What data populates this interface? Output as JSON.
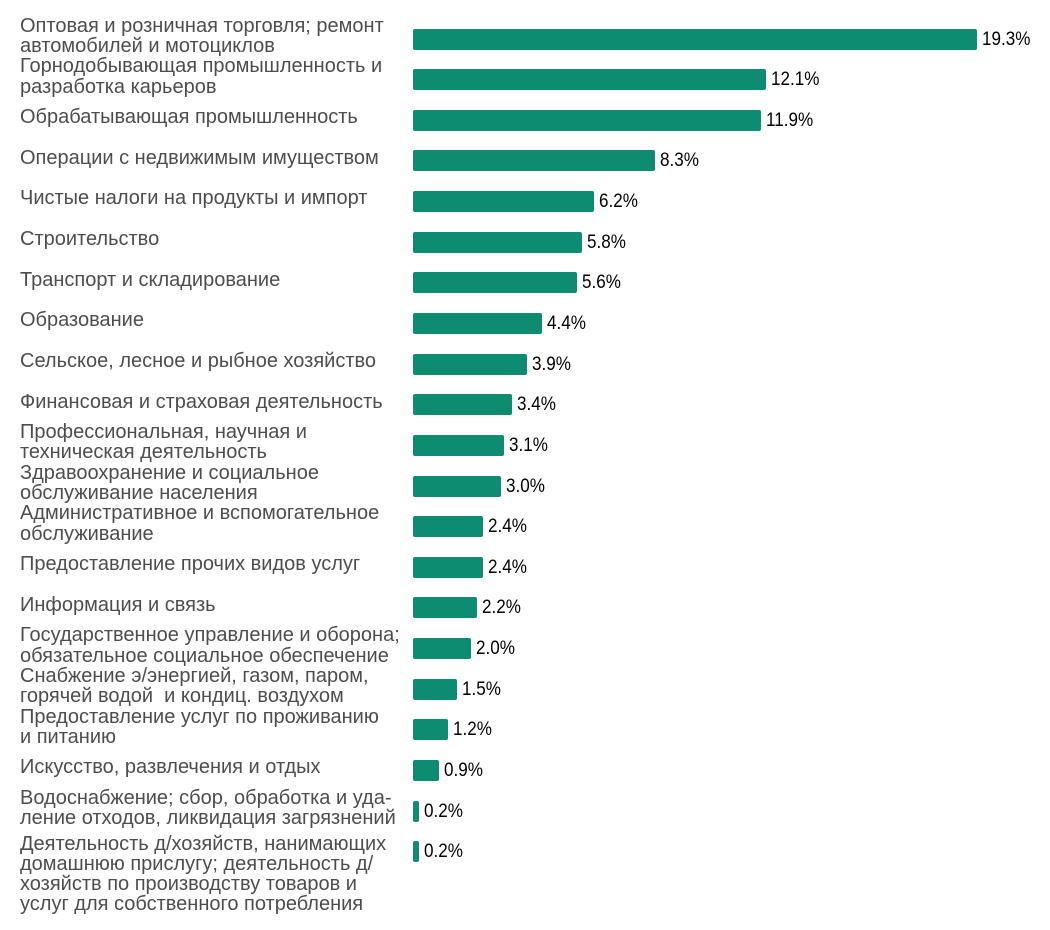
{
  "page": {
    "background_color": "#ffffff"
  },
  "chart_data": {
    "type": "bar",
    "orientation": "horizontal",
    "title": "",
    "xlabel": "",
    "ylabel": "",
    "unit": "%",
    "xlim": [
      0,
      19.3
    ],
    "grid": false,
    "legend": false,
    "bar_color": "#0d8c71",
    "category_label_color": "#4d4d4d",
    "value_label_color": "#000000",
    "categories": [
      "Оптовая и розничная торговля; ремонт\nавтомобилей и мотоциклов",
      "Горнодобывающая промышленность и\nразработка карьеров",
      "Обрабатывающая промышленность",
      "Операции с недвижимым имуществом",
      "Чистые налоги на продукты и импорт",
      "Строительство",
      "Транспорт и складирование",
      "Образование",
      "Сельское, лесное и рыбное хозяйство",
      "Финансовая и страховая деятельность",
      "Профессиональная, научная и\nтехническая деятельность",
      "Здравоохранение и социальное\nобслуживание населения",
      "Административное и вспомогательное\nобслуживание",
      "Предоставление прочих видов услуг",
      "Информация и связь",
      "Государственное управление и оборона;\nобязательное социальное обеспечение",
      "Снабжение э/энергией, газом, паром,\nгорячей водой  и кондиц. воздухом",
      "Предоставление услуг по проживанию\nи питанию",
      "Искусство, развлечения и отдых",
      "Водоснабжение; сбор, обработка и уда-\nление отходов, ликвидация загрязнений",
      "Деятельность д/хозяйств, нанимающих\nдомашнюю прислугу; деятельность д/\nхозяйств по производству товаров и\nуслуг для собственного потребления"
    ],
    "values": [
      19.3,
      12.1,
      11.9,
      8.3,
      6.2,
      5.8,
      5.6,
      4.4,
      3.9,
      3.4,
      3.1,
      3.0,
      2.4,
      2.4,
      2.2,
      2.0,
      1.5,
      1.2,
      0.9,
      0.2,
      0.2
    ],
    "value_labels": [
      "19.3%",
      "12.1%",
      "11.9%",
      "8.3%",
      "6.2%",
      "5.8%",
      "5.6%",
      "4.4%",
      "3.9%",
      "3.4%",
      "3.1%",
      "3.0%",
      "2.4%",
      "2.4%",
      "2.2%",
      "2.0%",
      "1.5%",
      "1.2%",
      "0.9%",
      "0.2%",
      "0.2%"
    ]
  }
}
